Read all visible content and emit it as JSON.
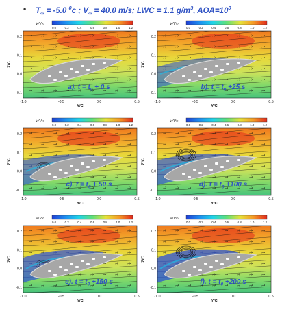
{
  "header": {
    "bullet": "•",
    "t_symbol": "T",
    "t_sub": "∞",
    "t_value": " = -5.0 ",
    "t_unit_sup": "0",
    "t_unit": "c ; ",
    "v_symbol": "V",
    "v_sub": "∞",
    "v_value": " = 40.0 m/s; LWC = 1.1 g/m",
    "lwc_sup": "3",
    "aoa": ", AOA=10",
    "aoa_sup": "0"
  },
  "colorbar": {
    "label": "V/V∞",
    "ticks": [
      "0.0",
      "0.2",
      "0.4",
      "0.6",
      "0.8",
      "1.0",
      "1.2"
    ],
    "colors": [
      "#1f3fd6",
      "#1e8ff0",
      "#20d4e8",
      "#5fe07a",
      "#e6e23a",
      "#f59a26",
      "#e2291c"
    ]
  },
  "axes": {
    "ylabel": "Z/C",
    "xlabel": "Y/C",
    "xticks": [
      "-1.0",
      "-0.5",
      "0.0",
      "0.5"
    ],
    "yticks": [
      "0.2",
      "0.1",
      "0.0",
      "-0.1"
    ]
  },
  "panels": [
    {
      "id": "a",
      "caption_prefix": "a). t = t",
      "caption_sub": "0",
      "caption_suffix": " + 0 s",
      "vortex": 0
    },
    {
      "id": "b",
      "caption_prefix": "b). t = t",
      "caption_sub": "0",
      "caption_suffix": " +25 s",
      "vortex": 1
    },
    {
      "id": "c",
      "caption_prefix": "c). t = t",
      "caption_sub": "0",
      "caption_suffix": " + 50 s",
      "vortex": 2
    },
    {
      "id": "d",
      "caption_prefix": "d). t = t",
      "caption_sub": "0",
      "caption_suffix": " +100 s",
      "vortex": 3
    },
    {
      "id": "e",
      "caption_prefix": "e). t = t",
      "caption_sub": "0",
      "caption_suffix": " +150 s",
      "vortex": 4
    },
    {
      "id": "f",
      "caption_prefix": "f). t = t",
      "caption_sub": "0",
      "caption_suffix": " +200 s",
      "vortex": 5
    }
  ]
}
